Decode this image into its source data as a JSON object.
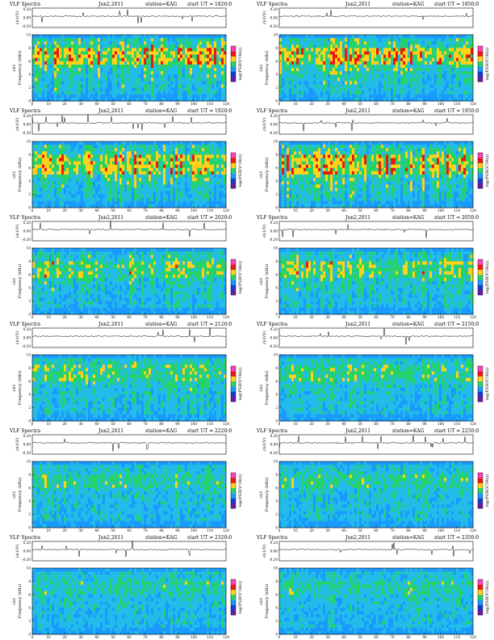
{
  "figure_title": "VLF Spectra",
  "date": "Jun2,2011",
  "station_label": "station=KAG",
  "utc_prefix": "start UT =",
  "colors": {
    "background": "#22bce8",
    "low": "#1a9aff",
    "mid": "#25d36a",
    "high": "#ffd21a",
    "peak": "#e81a10",
    "axis": "#000000",
    "colorbar": [
      "#6a1aa0",
      "#1a3ad0",
      "#1a9aff",
      "#25d36a",
      "#ffd21a",
      "#e81a10",
      "#ff40c0"
    ]
  },
  "chart_data": [
    {
      "type": "heatmap",
      "title": "VLF Spectra",
      "date": "Jun2,2011",
      "station": "station=KAG",
      "start_ut": "1820:0",
      "channel_label": "ch1(V)",
      "ylabel_outer": "ch1",
      "ylabel": "Frequency (kHz)",
      "xlabel": "Time (sec)",
      "colorbar_label": "log(PSD(V²/Hz))",
      "xlim": [
        0,
        120
      ],
      "ylim": [
        0,
        10
      ],
      "xticks": [
        "0",
        "10",
        "20",
        "30",
        "40",
        "50",
        "60",
        "70",
        "80",
        "90",
        "100",
        "110",
        "120"
      ],
      "yticks": [
        "0",
        "2",
        "4",
        "6",
        "8",
        "10"
      ],
      "timeseries_ticks": [
        "0.20",
        "0.00",
        "-0.20"
      ],
      "activity_band_khz": [
        5.5,
        8.0
      ],
      "activity": 0.85
    },
    {
      "type": "heatmap",
      "title": "VLF Spectra",
      "date": "Jun2,2011",
      "station": "station=KAG",
      "start_ut": "1850:0",
      "channel_label": "ch1(V)",
      "ylabel_outer": "ch1",
      "ylabel": "Frequency (kHz)",
      "xlabel": "Time (sec)",
      "colorbar_label": "log(PSD(V²/Hz))",
      "xlim": [
        0,
        120
      ],
      "ylim": [
        0,
        10
      ],
      "xticks": [
        "0",
        "10",
        "20",
        "30",
        "40",
        "50",
        "60",
        "70",
        "80",
        "90",
        "100",
        "110",
        "120"
      ],
      "yticks": [
        "0",
        "2",
        "4",
        "6",
        "8",
        "10"
      ],
      "timeseries_ticks": [
        "0.20",
        "0.00",
        "-0.20"
      ],
      "activity_band_khz": [
        5.5,
        8.0
      ],
      "activity": 0.85
    },
    {
      "type": "heatmap",
      "title": "VLF Spectra",
      "date": "Jun2,2011",
      "station": "station=KAG",
      "start_ut": "1920:0",
      "channel_label": "ch1(V)",
      "ylabel_outer": "ch1",
      "ylabel": "Frequency (kHz)",
      "xlabel": "Time (sec)",
      "colorbar_label": "log(PSD(V²/Hz))",
      "xlim": [
        0,
        120
      ],
      "ylim": [
        0,
        10
      ],
      "xticks": [
        "0",
        "10",
        "20",
        "30",
        "40",
        "50",
        "60",
        "70",
        "80",
        "90",
        "100",
        "110",
        "120"
      ],
      "yticks": [
        "0",
        "2",
        "4",
        "6",
        "8",
        "10"
      ],
      "timeseries_ticks": [
        "0.20",
        "0.00",
        "-0.20"
      ],
      "activity_band_khz": [
        5.0,
        8.0
      ],
      "activity": 0.8
    },
    {
      "type": "heatmap",
      "title": "VLF Spectra",
      "date": "Jun2,2011",
      "station": "station=KAG",
      "start_ut": "1950:0",
      "channel_label": "ch1(V)",
      "ylabel_outer": "ch1",
      "ylabel": "Frequency (kHz)",
      "xlabel": "Time (sec)",
      "colorbar_label": "log(PSD(V²/Hz))",
      "xlim": [
        0,
        120
      ],
      "ylim": [
        0,
        10
      ],
      "xticks": [
        "0",
        "10",
        "20",
        "30",
        "40",
        "50",
        "60",
        "70",
        "80",
        "90",
        "100",
        "110",
        "120"
      ],
      "yticks": [
        "0",
        "2",
        "4",
        "6",
        "8",
        "10"
      ],
      "timeseries_ticks": [
        "0.20",
        "0.00",
        "-0.20"
      ],
      "activity_band_khz": [
        5.0,
        8.0
      ],
      "activity": 0.8
    },
    {
      "type": "heatmap",
      "title": "VLF Spectra",
      "date": "Jun2,2011",
      "station": "station=KAG",
      "start_ut": "2020:0",
      "channel_label": "ch1(V)",
      "ylabel_outer": "ch1",
      "ylabel": "Frequency (kHz)",
      "xlabel": "Time (sec)",
      "colorbar_label": "log(PSD(V²/Hz))",
      "xlim": [
        0,
        120
      ],
      "ylim": [
        0,
        10
      ],
      "xticks": [
        "0",
        "10",
        "20",
        "30",
        "40",
        "50",
        "60",
        "70",
        "80",
        "90",
        "100",
        "110",
        "120"
      ],
      "yticks": [
        "0",
        "2",
        "4",
        "6",
        "8",
        "10"
      ],
      "timeseries_ticks": [
        "0.20",
        "0.00",
        "-0.20"
      ],
      "activity_band_khz": [
        5.5,
        8.0
      ],
      "activity": 0.6
    },
    {
      "type": "heatmap",
      "title": "VLF Spectra",
      "date": "Jun2,2011",
      "station": "station=KAG",
      "start_ut": "2050:0",
      "channel_label": "ch1(V)",
      "ylabel_outer": "ch1",
      "ylabel": "Frequency (kHz)",
      "xlabel": "Time (sec)",
      "colorbar_label": "log(PSD(V²/Hz))",
      "xlim": [
        0,
        120
      ],
      "ylim": [
        0,
        10
      ],
      "xticks": [
        "0",
        "10",
        "20",
        "30",
        "40",
        "50",
        "60",
        "70",
        "80",
        "90",
        "100",
        "110",
        "120"
      ],
      "yticks": [
        "0",
        "2",
        "4",
        "6",
        "8",
        "10"
      ],
      "timeseries_ticks": [
        "0.20",
        "0.00",
        "-0.20"
      ],
      "activity_band_khz": [
        5.5,
        8.0
      ],
      "activity": 0.6
    },
    {
      "type": "heatmap",
      "title": "VLF Spectra",
      "date": "Jun2,2011",
      "station": "station=KAG",
      "start_ut": "2120:0",
      "channel_label": "ch1(V)",
      "ylabel_outer": "ch1",
      "ylabel": "Frequency (kHz)",
      "xlabel": "Time (sec)",
      "colorbar_label": "log(PSD(V²/Hz))",
      "xlim": [
        0,
        120
      ],
      "ylim": [
        0,
        10
      ],
      "xticks": [
        "0",
        "10",
        "20",
        "30",
        "40",
        "50",
        "60",
        "70",
        "80",
        "90",
        "100",
        "110",
        "120"
      ],
      "yticks": [
        "0",
        "2",
        "4",
        "6",
        "8",
        "10"
      ],
      "timeseries_ticks": [
        "0.20",
        "0.00",
        "-0.20"
      ],
      "activity_band_khz": [
        6.0,
        8.5
      ],
      "activity": 0.5
    },
    {
      "type": "heatmap",
      "title": "VLF Spectra",
      "date": "Jun2,2011",
      "station": "station=KAG",
      "start_ut": "2150:0",
      "channel_label": "ch1(V)",
      "ylabel_outer": "ch1",
      "ylabel": "Frequency (kHz)",
      "xlabel": "Time (sec)",
      "colorbar_label": "log(PSD(V²/Hz))",
      "xlim": [
        0,
        120
      ],
      "ylim": [
        0,
        10
      ],
      "xticks": [
        "0",
        "10",
        "20",
        "30",
        "40",
        "50",
        "60",
        "70",
        "80",
        "90",
        "100",
        "110",
        "120"
      ],
      "yticks": [
        "0",
        "2",
        "4",
        "6",
        "8",
        "10"
      ],
      "timeseries_ticks": [
        "0.20",
        "0.00",
        "-0.20"
      ],
      "activity_band_khz": [
        6.0,
        8.5
      ],
      "activity": 0.45
    },
    {
      "type": "heatmap",
      "title": "VLF Spectra",
      "date": "Jun2,2011",
      "station": "station=KAG",
      "start_ut": "2220:0",
      "channel_label": "ch1(V)",
      "ylabel_outer": "ch1",
      "ylabel": "Frequency (kHz)",
      "xlabel": "Time (sec)",
      "colorbar_label": "log(PSD(V²/Hz))",
      "xlim": [
        0,
        120
      ],
      "ylim": [
        0,
        10
      ],
      "xticks": [
        "0",
        "10",
        "20",
        "30",
        "40",
        "50",
        "60",
        "70",
        "80",
        "90",
        "100",
        "110",
        "120"
      ],
      "yticks": [
        "0",
        "2",
        "4",
        "6",
        "8",
        "10"
      ],
      "timeseries_ticks": [
        "0.20",
        "0.00",
        "-0.20"
      ],
      "activity_band_khz": [
        6.0,
        8.0
      ],
      "activity": 0.4
    },
    {
      "type": "heatmap",
      "title": "VLF Spectra",
      "date": "Jun2,2011",
      "station": "station=KAG",
      "start_ut": "2250:0",
      "channel_label": "ch1(V)",
      "ylabel_outer": "ch1",
      "ylabel": "Frequency (kHz)",
      "xlabel": "Time (sec)",
      "colorbar_label": "log(PSD(V²/Hz))",
      "xlim": [
        0,
        120
      ],
      "ylim": [
        0,
        10
      ],
      "xticks": [
        "0",
        "10",
        "20",
        "30",
        "40",
        "50",
        "60",
        "70",
        "80",
        "90",
        "100",
        "110",
        "120"
      ],
      "yticks": [
        "0",
        "2",
        "4",
        "6",
        "8",
        "10"
      ],
      "timeseries_ticks": [
        "0.20",
        "0.00",
        "-0.20"
      ],
      "activity_band_khz": [
        6.0,
        8.0
      ],
      "activity": 0.4
    },
    {
      "type": "heatmap",
      "title": "VLF Spectra",
      "date": "Jun2,2011",
      "station": "station=KAG",
      "start_ut": "2320:0",
      "channel_label": "ch1(V)",
      "ylabel_outer": "ch1",
      "ylabel": "Frequency (kHz)",
      "xlabel": "Time (sec)",
      "colorbar_label": "log(PSD(V²/Hz))",
      "xlim": [
        0,
        120
      ],
      "ylim": [
        0,
        10
      ],
      "xticks": [
        "0",
        "10",
        "20",
        "30",
        "40",
        "50",
        "60",
        "70",
        "80",
        "90",
        "100",
        "110",
        "120"
      ],
      "yticks": [
        "0",
        "2",
        "4",
        "6",
        "8",
        "10"
      ],
      "timeseries_ticks": [
        "0.20",
        "0.00",
        "-0.20"
      ],
      "activity_band_khz": [
        6.0,
        8.0
      ],
      "activity": 0.35
    },
    {
      "type": "heatmap",
      "title": "VLF Spectra",
      "date": "Jun2,2011",
      "station": "station=KAG",
      "start_ut": "2350:0",
      "channel_label": "ch1(V)",
      "ylabel_outer": "ch1",
      "ylabel": "Frequency (kHz)",
      "xlabel": "Time (sec)",
      "colorbar_label": "log(PSD(V²/Hz))",
      "xlim": [
        0,
        120
      ],
      "ylim": [
        0,
        10
      ],
      "xticks": [
        "0",
        "10",
        "20",
        "30",
        "40",
        "50",
        "60",
        "70",
        "80",
        "90",
        "100",
        "110",
        "120"
      ],
      "yticks": [
        "0",
        "2",
        "4",
        "6",
        "8",
        "10"
      ],
      "timeseries_ticks": [
        "0.20",
        "0.00",
        "-0.20"
      ],
      "activity_band_khz": [
        6.0,
        8.0
      ],
      "activity": 0.35
    }
  ]
}
